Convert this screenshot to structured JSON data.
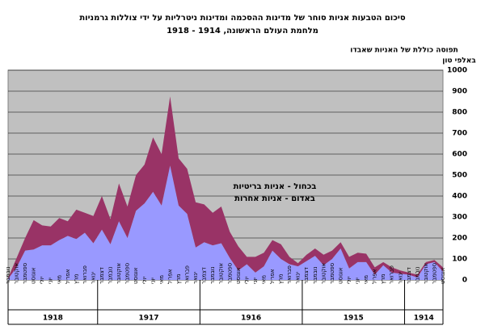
{
  "chart_data": {
    "type": "stacked_area",
    "title": [
      "סיכום הטבעות אניות סוחר של מדינות ההסכמה ומדינות ניטרליות על ידי צוללות גרמניות",
      "מלחמת העולם הראשונה, 1914 - 1918"
    ],
    "y_label": [
      "תפוסה כוללת של האניות שאבדו",
      "באלפי טון"
    ],
    "groups": [
      {
        "label": "1918",
        "categories": [
          "נובמבר",
          "אוקטובר",
          "ספטמבר",
          "אוגוסט",
          "יולי",
          "יוני",
          "מאי",
          "אפריל",
          "מרץ",
          "פברואר",
          "ינואר"
        ]
      },
      {
        "label": "1917",
        "categories": [
          "דצמבר",
          "נובמבר",
          "אוקטובר",
          "ספטמבר",
          "אוגוסט",
          "יולי",
          "יוני",
          "מאי",
          "אפריל",
          "מרץ",
          "פברואר",
          "ינואר"
        ]
      },
      {
        "label": "1916",
        "categories": [
          "דצמבר",
          "נובמבר",
          "אוקטובר",
          "ספטמבר",
          "אוגוסט",
          "יולי",
          "יוני",
          "מאי",
          "אפריל",
          "מרץ",
          "פברואר",
          "ינואר"
        ]
      },
      {
        "label": "1915",
        "categories": [
          "דצמבר",
          "נובמבר",
          "אוקטובר",
          "ספטמבר",
          "אוגוסט",
          "יולי",
          "יוני",
          "מאי",
          "אפריל",
          "מרץ",
          "פברואר",
          "ינואר"
        ]
      },
      {
        "label": "1914",
        "categories": [
          "דצמבר",
          "נובמבר",
          "אוקטובר",
          "ספטמבר",
          "אוגוסט"
        ]
      }
    ],
    "series": [
      {
        "name": "בכחול - אניות בריטיות",
        "color": "#9999ff",
        "values": [
          5,
          60,
          140,
          145,
          165,
          165,
          190,
          210,
          195,
          225,
          175,
          240,
          170,
          280,
          200,
          330,
          365,
          420,
          355,
          545,
          355,
          315,
          155,
          180,
          165,
          175,
          105,
          45,
          75,
          35,
          65,
          140,
          100,
          75,
          65,
          90,
          115,
          70,
          100,
          150,
          55,
          85,
          85,
          25,
          70,
          35,
          30,
          25,
          12,
          75,
          85,
          40
        ]
      },
      {
        "name": "באדום - אניות אחרות",
        "color": "#993366",
        "values": [
          5,
          45,
          60,
          140,
          95,
          90,
          105,
          70,
          140,
          95,
          130,
          160,
          120,
          180,
          150,
          170,
          185,
          260,
          245,
          330,
          225,
          215,
          215,
          180,
          155,
          175,
          125,
          115,
          35,
          75,
          65,
          50,
          70,
          35,
          15,
          30,
          35,
          50,
          40,
          30,
          55,
          45,
          40,
          35,
          15,
          25,
          15,
          10,
          13,
          10,
          10,
          20
        ]
      }
    ],
    "ylim": [
      0,
      1000
    ],
    "yticks": [
      0,
      100,
      200,
      300,
      400,
      500,
      600,
      700,
      800,
      900,
      1000
    ],
    "grid": true,
    "background": "#c0c0c0"
  }
}
